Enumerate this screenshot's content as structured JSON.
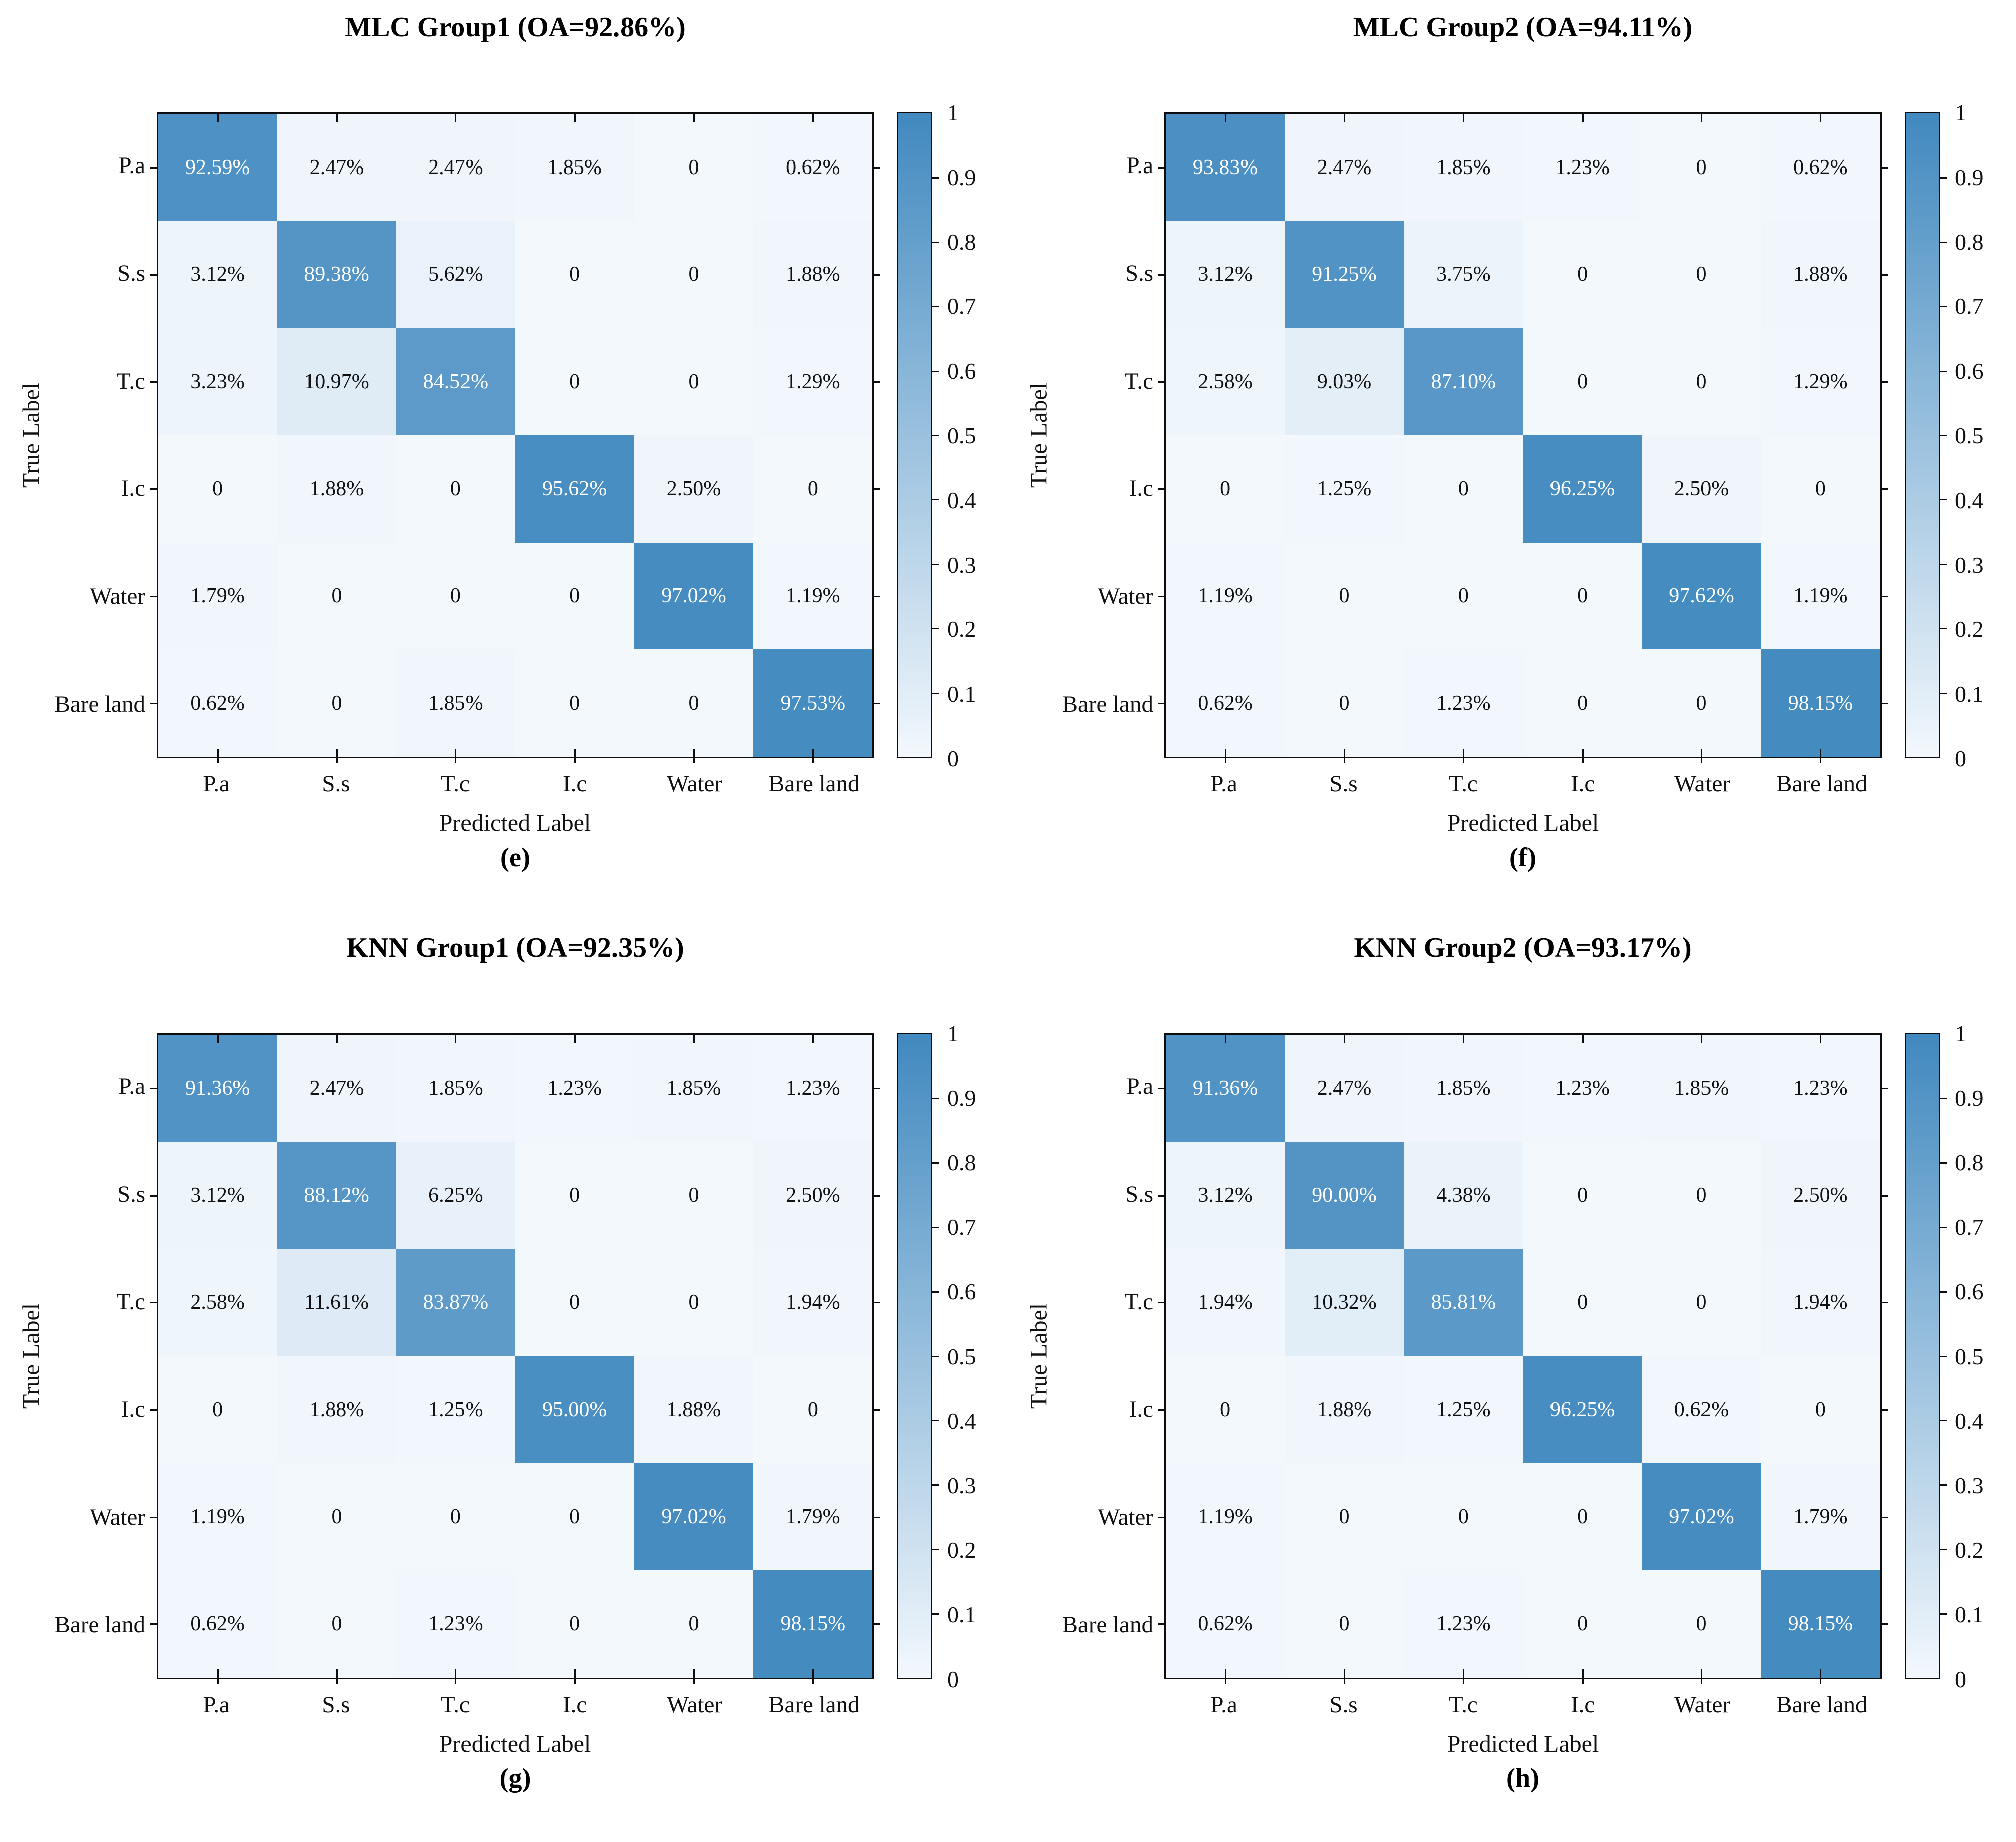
{
  "figure": {
    "background": "#ffffff",
    "axis_color": "#0d0d0d",
    "colorbar": {
      "low_color": "#f3f8fd",
      "high_color": "#4189bf",
      "ticks": [
        "1",
        "0.9",
        "0.8",
        "0.7",
        "0.6",
        "0.5",
        "0.4",
        "0.3",
        "0.2",
        "0.1",
        "0"
      ]
    }
  },
  "chart_data": [
    {
      "type": "heatmap",
      "title": "MLC Group1 (OA=92.86%)",
      "caption": "(e)",
      "xlabel": "Predicted Label",
      "ylabel": "True Label",
      "x_categories": [
        "P.a",
        "S.s",
        "T.c",
        "I.c",
        "Water",
        "Bare land"
      ],
      "y_categories": [
        "P.a",
        "S.s",
        "T.c",
        "I.c",
        "Water",
        "Bare land"
      ],
      "value_range": [
        0,
        1
      ],
      "legend_position": "right-colorbar",
      "cell_text": [
        [
          "92.59%",
          "2.47%",
          "2.47%",
          "1.85%",
          "0",
          "0.62%"
        ],
        [
          "3.12%",
          "89.38%",
          "5.62%",
          "0",
          "0",
          "1.88%"
        ],
        [
          "3.23%",
          "10.97%",
          "84.52%",
          "0",
          "0",
          "1.29%"
        ],
        [
          "0",
          "1.88%",
          "0",
          "95.62%",
          "2.50%",
          "0"
        ],
        [
          "1.79%",
          "0",
          "0",
          "0",
          "97.02%",
          "1.19%"
        ],
        [
          "0.62%",
          "0",
          "1.85%",
          "0",
          "0",
          "97.53%"
        ]
      ],
      "values": [
        [
          0.9259,
          0.0247,
          0.0247,
          0.0185,
          0,
          0.0062
        ],
        [
          0.0312,
          0.8938,
          0.0562,
          0,
          0,
          0.0188
        ],
        [
          0.0323,
          0.1097,
          0.8452,
          0,
          0,
          0.0129
        ],
        [
          0,
          0.0188,
          0,
          0.9562,
          0.025,
          0
        ],
        [
          0.0179,
          0,
          0,
          0,
          0.9702,
          0.0119
        ],
        [
          0.0062,
          0,
          0.0185,
          0,
          0,
          0.9753
        ]
      ]
    },
    {
      "type": "heatmap",
      "title": "MLC Group2 (OA=94.11%)",
      "caption": "(f)",
      "xlabel": "Predicted Label",
      "ylabel": "True Label",
      "x_categories": [
        "P.a",
        "S.s",
        "T.c",
        "I.c",
        "Water",
        "Bare land"
      ],
      "y_categories": [
        "P.a",
        "S.s",
        "T.c",
        "I.c",
        "Water",
        "Bare land"
      ],
      "value_range": [
        0,
        1
      ],
      "legend_position": "right-colorbar",
      "cell_text": [
        [
          "93.83%",
          "2.47%",
          "1.85%",
          "1.23%",
          "0",
          "0.62%"
        ],
        [
          "3.12%",
          "91.25%",
          "3.75%",
          "0",
          "0",
          "1.88%"
        ],
        [
          "2.58%",
          "9.03%",
          "87.10%",
          "0",
          "0",
          "1.29%"
        ],
        [
          "0",
          "1.25%",
          "0",
          "96.25%",
          "2.50%",
          "0"
        ],
        [
          "1.19%",
          "0",
          "0",
          "0",
          "97.62%",
          "1.19%"
        ],
        [
          "0.62%",
          "0",
          "1.23%",
          "0",
          "0",
          "98.15%"
        ]
      ],
      "values": [
        [
          0.9383,
          0.0247,
          0.0185,
          0.0123,
          0,
          0.0062
        ],
        [
          0.0312,
          0.9125,
          0.0375,
          0,
          0,
          0.0188
        ],
        [
          0.0258,
          0.0903,
          0.871,
          0,
          0,
          0.0129
        ],
        [
          0,
          0.0125,
          0,
          0.9625,
          0.025,
          0
        ],
        [
          0.0119,
          0,
          0,
          0,
          0.9762,
          0.0119
        ],
        [
          0.0062,
          0,
          0.0123,
          0,
          0,
          0.9815
        ]
      ]
    },
    {
      "type": "heatmap",
      "title": "KNN Group1 (OA=92.35%)",
      "caption": "(g)",
      "xlabel": "Predicted Label",
      "ylabel": "True Label",
      "x_categories": [
        "P.a",
        "S.s",
        "T.c",
        "I.c",
        "Water",
        "Bare land"
      ],
      "y_categories": [
        "P.a",
        "S.s",
        "T.c",
        "I.c",
        "Water",
        "Bare land"
      ],
      "value_range": [
        0,
        1
      ],
      "legend_position": "right-colorbar",
      "cell_text": [
        [
          "91.36%",
          "2.47%",
          "1.85%",
          "1.23%",
          "1.85%",
          "1.23%"
        ],
        [
          "3.12%",
          "88.12%",
          "6.25%",
          "0",
          "0",
          "2.50%"
        ],
        [
          "2.58%",
          "11.61%",
          "83.87%",
          "0",
          "0",
          "1.94%"
        ],
        [
          "0",
          "1.88%",
          "1.25%",
          "95.00%",
          "1.88%",
          "0"
        ],
        [
          "1.19%",
          "0",
          "0",
          "0",
          "97.02%",
          "1.79%"
        ],
        [
          "0.62%",
          "0",
          "1.23%",
          "0",
          "0",
          "98.15%"
        ]
      ],
      "values": [
        [
          0.9136,
          0.0247,
          0.0185,
          0.0123,
          0.0185,
          0.0123
        ],
        [
          0.0312,
          0.8812,
          0.0625,
          0,
          0,
          0.025
        ],
        [
          0.0258,
          0.1161,
          0.8387,
          0,
          0,
          0.0194
        ],
        [
          0,
          0.0188,
          0.0125,
          0.95,
          0.0188,
          0
        ],
        [
          0.0119,
          0,
          0,
          0,
          0.9702,
          0.0179
        ],
        [
          0.0062,
          0,
          0.0123,
          0,
          0,
          0.9815
        ]
      ]
    },
    {
      "type": "heatmap",
      "title": "KNN Group2 (OA=93.17%)",
      "caption": "(h)",
      "xlabel": "Predicted Label",
      "ylabel": "True Label",
      "x_categories": [
        "P.a",
        "S.s",
        "T.c",
        "I.c",
        "Water",
        "Bare land"
      ],
      "y_categories": [
        "P.a",
        "S.s",
        "T.c",
        "I.c",
        "Water",
        "Bare land"
      ],
      "value_range": [
        0,
        1
      ],
      "legend_position": "right-colorbar",
      "cell_text": [
        [
          "91.36%",
          "2.47%",
          "1.85%",
          "1.23%",
          "1.85%",
          "1.23%"
        ],
        [
          "3.12%",
          "90.00%",
          "4.38%",
          "0",
          "0",
          "2.50%"
        ],
        [
          "1.94%",
          "10.32%",
          "85.81%",
          "0",
          "0",
          "1.94%"
        ],
        [
          "0",
          "1.88%",
          "1.25%",
          "96.25%",
          "0.62%",
          "0"
        ],
        [
          "1.19%",
          "0",
          "0",
          "0",
          "97.02%",
          "1.79%"
        ],
        [
          "0.62%",
          "0",
          "1.23%",
          "0",
          "0",
          "98.15%"
        ]
      ],
      "values": [
        [
          0.9136,
          0.0247,
          0.0185,
          0.0123,
          0.0185,
          0.0123
        ],
        [
          0.0312,
          0.9,
          0.0438,
          0,
          0,
          0.025
        ],
        [
          0.0194,
          0.1032,
          0.8581,
          0,
          0,
          0.0194
        ],
        [
          0,
          0.0188,
          0.0125,
          0.9625,
          0.0062,
          0
        ],
        [
          0.0119,
          0,
          0,
          0,
          0.9702,
          0.0179
        ],
        [
          0.0062,
          0,
          0.0123,
          0,
          0,
          0.9815
        ]
      ]
    }
  ]
}
